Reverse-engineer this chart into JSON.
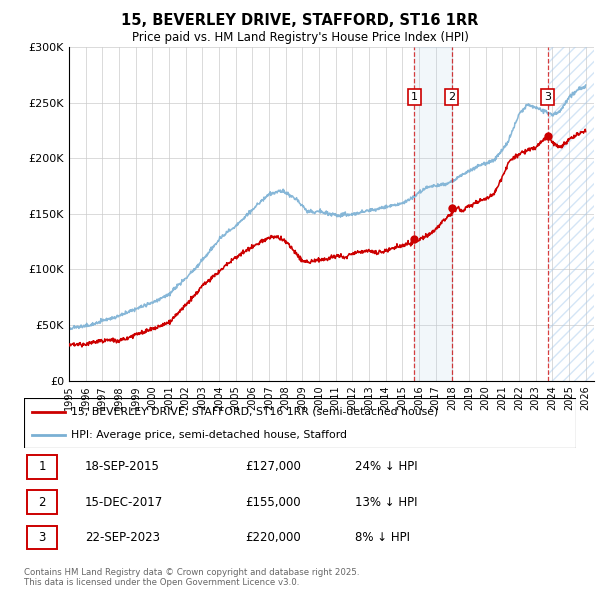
{
  "title": "15, BEVERLEY DRIVE, STAFFORD, ST16 1RR",
  "subtitle": "Price paid vs. HM Land Registry's House Price Index (HPI)",
  "ylim": [
    0,
    300000
  ],
  "xlim_start": 1995,
  "xlim_end": 2026,
  "hpi_color": "#7ab0d4",
  "price_color": "#cc0000",
  "transactions": [
    {
      "label": "1",
      "date": "18-SEP-2015",
      "date_num": 2015.72,
      "price": 127000,
      "pct": "24%",
      "direction": "↓"
    },
    {
      "label": "2",
      "date": "15-DEC-2017",
      "date_num": 2017.96,
      "price": 155000,
      "pct": "13%",
      "direction": "↓"
    },
    {
      "label": "3",
      "date": "22-SEP-2023",
      "date_num": 2023.72,
      "price": 220000,
      "pct": "8%",
      "direction": "↓"
    }
  ],
  "legend_label_red": "15, BEVERLEY DRIVE, STAFFORD, ST16 1RR (semi-detached house)",
  "legend_label_blue": "HPI: Average price, semi-detached house, Stafford",
  "footer": "Contains HM Land Registry data © Crown copyright and database right 2025.\nThis data is licensed under the Open Government Licence v3.0.",
  "table_rows": [
    [
      "1",
      "18-SEP-2015",
      "£127,000",
      "24% ↓ HPI"
    ],
    [
      "2",
      "15-DEC-2017",
      "£155,000",
      "13% ↓ HPI"
    ],
    [
      "3",
      "22-SEP-2023",
      "£220,000",
      "8% ↓ HPI"
    ]
  ]
}
